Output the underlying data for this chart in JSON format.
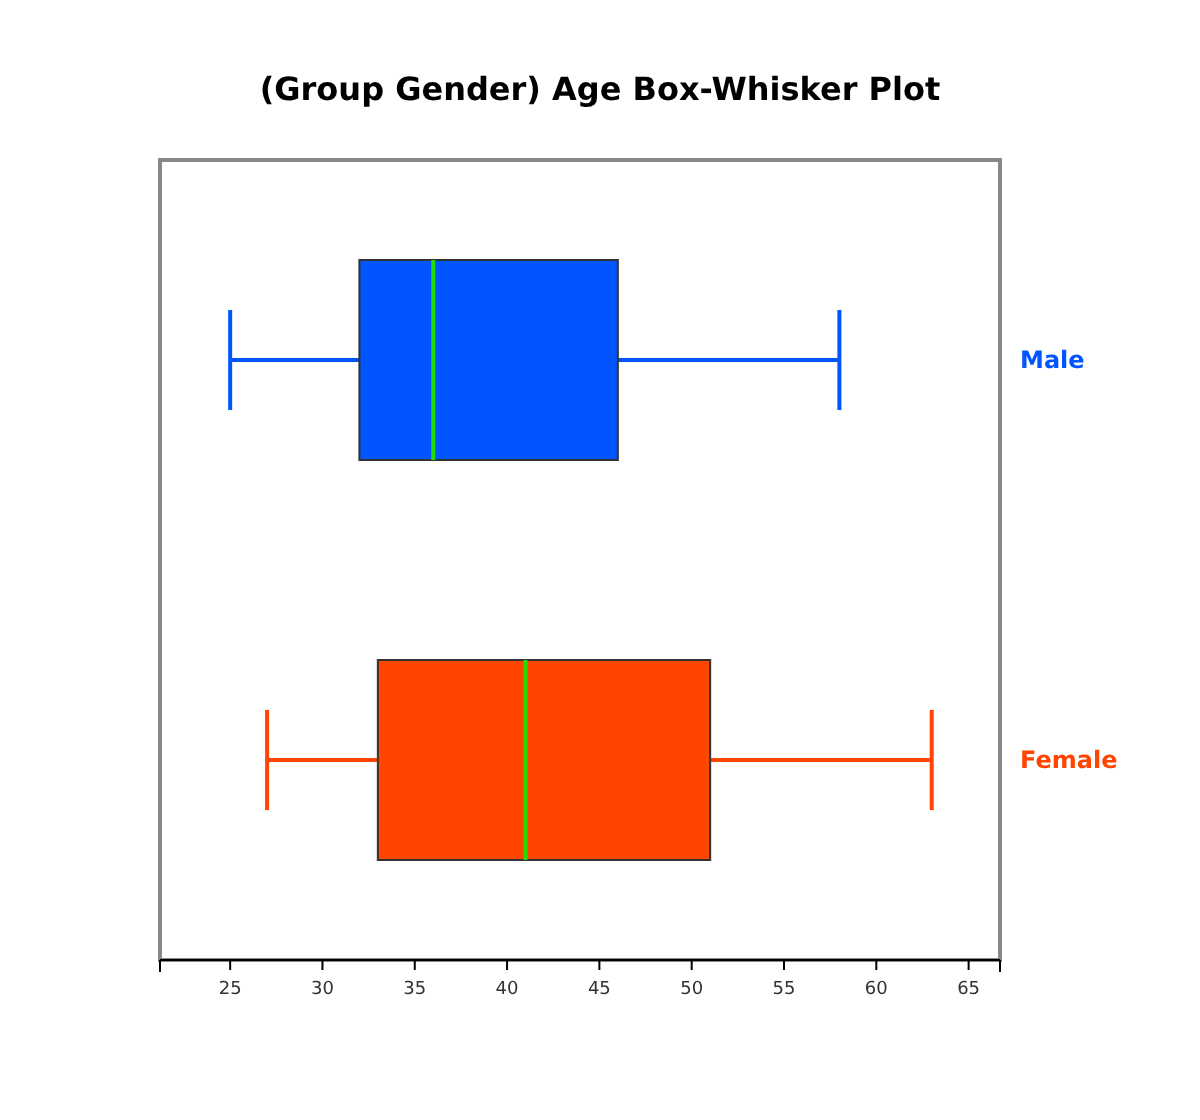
{
  "chart_data": {
    "type": "box",
    "title": "(Group Gender) Age Box-Whisker Plot",
    "orientation": "horizontal",
    "categories": [
      "Male",
      "Female"
    ],
    "colors": [
      "#0055ff",
      "#ff4500"
    ],
    "boxes": [
      {
        "low": 25,
        "q1": 32,
        "median": 36,
        "q3": 46,
        "high": 58
      },
      {
        "low": 27,
        "q1": 33,
        "median": 41,
        "q3": 51,
        "high": 63
      }
    ],
    "xlim": [
      21.2,
      66.7
    ],
    "xticks": [
      25,
      30,
      35,
      40,
      45,
      50,
      55,
      60,
      65
    ],
    "grid": false
  }
}
